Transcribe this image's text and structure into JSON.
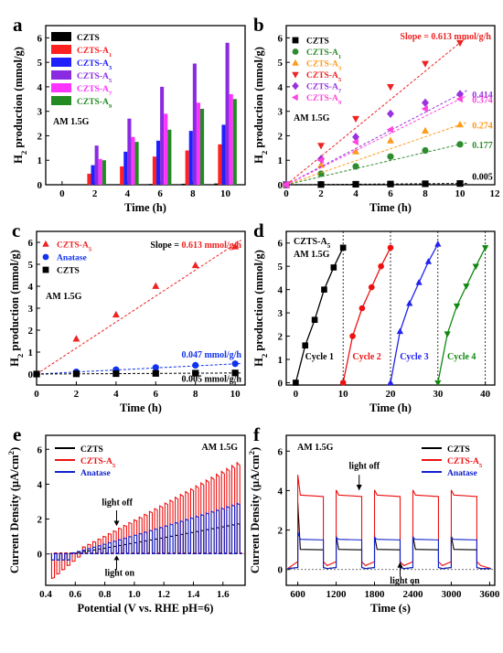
{
  "chart_data": [
    {
      "panel": "a",
      "type": "bar",
      "xlabel": "Time (h)",
      "ylabel": "H2 production (mmol/g)",
      "ylim": [
        0,
        6.5
      ],
      "annotation": "AM 1.5G",
      "categories": [
        0,
        2,
        4,
        6,
        8,
        10
      ],
      "series": [
        {
          "name": "CZTS",
          "color": "#000000",
          "values": [
            0,
            0.01,
            0.02,
            0.03,
            0.04,
            0.05
          ]
        },
        {
          "name": "CZTS-A1",
          "color": "#ff2020",
          "values": [
            0,
            0.45,
            0.75,
            1.15,
            1.4,
            1.65
          ]
        },
        {
          "name": "CZTS-A3",
          "color": "#2020ff",
          "values": [
            0,
            0.8,
            1.35,
            1.8,
            2.2,
            2.45
          ]
        },
        {
          "name": "CZTS-A5",
          "color": "#8a2be2",
          "values": [
            0,
            1.6,
            2.7,
            4.0,
            4.95,
            5.8
          ]
        },
        {
          "name": "CZTS-A7",
          "color": "#ff33ff",
          "values": [
            0,
            1.05,
            1.95,
            2.9,
            3.35,
            3.7
          ]
        },
        {
          "name": "CZTS-A9",
          "color": "#228b22",
          "values": [
            0,
            1.0,
            1.75,
            2.25,
            3.1,
            3.5
          ]
        }
      ]
    },
    {
      "panel": "b",
      "type": "scatter",
      "xlabel": "Time (h)",
      "ylabel": "H2 production (mmol/g)",
      "xlim": [
        0,
        12
      ],
      "ylim": [
        0,
        6.5
      ],
      "xticks": [
        0,
        2,
        4,
        6,
        8,
        10,
        12
      ],
      "yticks": [
        0,
        1,
        2,
        3,
        4,
        5,
        6
      ],
      "annotation": "AM 1.5G",
      "slope_label": "Slope = 0.613 mmol/g/h",
      "series": [
        {
          "name": "CZTS",
          "color": "#000000",
          "marker": "square",
          "slope": "0.005",
          "x": [
            0,
            2,
            4,
            6,
            8,
            10
          ],
          "y": [
            0,
            0.01,
            0.02,
            0.03,
            0.04,
            0.05
          ]
        },
        {
          "name": "CZTS-A1",
          "color": "#2e8b2e",
          "marker": "circle",
          "slope": "0.177",
          "x": [
            0,
            2,
            4,
            6,
            8,
            10
          ],
          "y": [
            0,
            0.45,
            0.75,
            1.15,
            1.4,
            1.65
          ]
        },
        {
          "name": "CZTS-A3",
          "color": "#ff9a1a",
          "marker": "triangle-up",
          "slope": "0.274",
          "x": [
            0,
            2,
            4,
            6,
            8,
            10
          ],
          "y": [
            0,
            0.8,
            1.35,
            1.8,
            2.2,
            2.45
          ]
        },
        {
          "name": "CZTS-A5",
          "color": "#ee2222",
          "marker": "triangle-down",
          "slope": "",
          "x": [
            0,
            2,
            4,
            6,
            8,
            10
          ],
          "y": [
            0,
            1.6,
            2.7,
            4.0,
            4.95,
            5.8
          ]
        },
        {
          "name": "CZTS-A7",
          "color": "#9933dd",
          "marker": "diamond",
          "slope": "0.414",
          "x": [
            0,
            2,
            4,
            6,
            8,
            10
          ],
          "y": [
            0,
            1.05,
            1.95,
            2.9,
            3.35,
            3.7
          ]
        },
        {
          "name": "CZTS-A9",
          "color": "#ff44dd",
          "marker": "triangle-left",
          "slope": "0.374",
          "x": [
            0,
            2,
            4,
            6,
            8,
            10
          ],
          "y": [
            0,
            1.0,
            1.75,
            2.25,
            3.1,
            3.5
          ]
        }
      ]
    },
    {
      "panel": "c",
      "type": "scatter",
      "xlabel": "Time (h)",
      "ylabel": "H2 production (mmol/g)",
      "xlim": [
        0,
        10.5
      ],
      "ylim": [
        -0.5,
        6.5
      ],
      "xticks": [
        0,
        2,
        4,
        6,
        8,
        10
      ],
      "yticks": [
        0,
        1,
        2,
        3,
        4,
        5,
        6
      ],
      "annotation": "AM 1.5G",
      "labels": {
        "slope_prefix": "Slope = ",
        "slope_value": "0.613 mmol/g/h",
        "anatase_slope": "0.047 mmol/g/h",
        "czts_slope": "0.005 mmol/g/h"
      },
      "series": [
        {
          "name": "CZTS-A5",
          "color": "#ee2222",
          "marker": "triangle-up",
          "x": [
            2,
            4,
            6,
            8,
            10
          ],
          "y": [
            1.6,
            2.7,
            4.0,
            4.95,
            5.8
          ]
        },
        {
          "name": "Anatase",
          "color": "#1133ee",
          "marker": "circle",
          "x": [
            0,
            2,
            4,
            6,
            8,
            10
          ],
          "y": [
            0,
            0.1,
            0.2,
            0.3,
            0.4,
            0.47
          ]
        },
        {
          "name": "CZTS",
          "color": "#000000",
          "marker": "square",
          "x": [
            0,
            2,
            4,
            6,
            8,
            10
          ],
          "y": [
            0,
            0.01,
            0.02,
            0.03,
            0.04,
            0.05
          ]
        }
      ]
    },
    {
      "panel": "d",
      "type": "line",
      "xlabel": "Time (h)",
      "ylabel": "H2 production (mmol/g)",
      "xlim": [
        -2,
        42
      ],
      "ylim": [
        -0.1,
        6.5
      ],
      "xticks": [
        0,
        10,
        20,
        30,
        40
      ],
      "yticks": [
        0,
        1,
        2,
        3,
        4,
        5,
        6
      ],
      "label": "CZTS-A5",
      "annotation": "AM 1.5G",
      "series": [
        {
          "name": "Cycle 1",
          "color": "#000000",
          "marker": "square",
          "x": [
            0,
            2,
            4,
            6,
            8,
            10
          ],
          "y": [
            0,
            1.6,
            2.7,
            4.0,
            4.95,
            5.8
          ]
        },
        {
          "name": "Cycle 2",
          "color": "#ee1111",
          "marker": "circle",
          "x": [
            10,
            12,
            14,
            16,
            18,
            20
          ],
          "y": [
            0,
            2.0,
            3.2,
            4.1,
            5.0,
            5.8
          ]
        },
        {
          "name": "Cycle 3",
          "color": "#2222ee",
          "marker": "triangle-up",
          "x": [
            20,
            22,
            24,
            26,
            28,
            30
          ],
          "y": [
            0,
            2.2,
            3.4,
            4.3,
            5.2,
            5.95
          ]
        },
        {
          "name": "Cycle 4",
          "color": "#118811",
          "marker": "triangle-down",
          "x": [
            30,
            32,
            34,
            36,
            38,
            40
          ],
          "y": [
            0,
            2.1,
            3.3,
            4.15,
            5.0,
            5.8
          ]
        }
      ],
      "dividers": [
        10,
        20,
        30,
        40
      ]
    },
    {
      "panel": "e",
      "type": "line",
      "xlabel": "Potential (V vs. RHE pH=6)",
      "ylabel": "Current Density (μA/cm2)",
      "xlim": [
        0.4,
        1.75
      ],
      "ylim": [
        -1.8,
        6.8
      ],
      "xticks": [
        0.4,
        0.6,
        0.8,
        1.0,
        1.2,
        1.4,
        1.6
      ],
      "yticks": [
        0,
        2,
        4,
        6
      ],
      "annotation": "AM 1.5G",
      "light_off": "light off",
      "light_on": "light on",
      "series": [
        {
          "name": "CZTS",
          "color": "#000000",
          "on_start": 0.0,
          "on_end": 1.8
        },
        {
          "name": "CZTS-A5",
          "color": "#ee1111",
          "on_start": 0.0,
          "on_end": 5.4
        },
        {
          "name": "Anatase",
          "color": "#1122cc",
          "on_start": 0.0,
          "on_end": 3.0
        }
      ]
    },
    {
      "panel": "f",
      "type": "line",
      "xlabel": "Time (s)",
      "ylabel": "Current Density (μA/cm2)",
      "xlim": [
        420,
        3680
      ],
      "ylim": [
        -0.8,
        6.8
      ],
      "xticks": [
        600,
        1200,
        1800,
        2400,
        3000,
        3600
      ],
      "yticks": [
        0,
        2,
        4,
        6
      ],
      "annotation": "AM 1.5G",
      "light_off": "light off",
      "light_on": "light on",
      "on_intervals": [
        [
          600,
          1000
        ],
        [
          1200,
          1600
        ],
        [
          1800,
          2200
        ],
        [
          2400,
          2800
        ],
        [
          3000,
          3400
        ]
      ],
      "series": [
        {
          "name": "CZTS",
          "color": "#000000",
          "on_level": 1.0,
          "spike": 3.4
        },
        {
          "name": "CZTS-A5",
          "color": "#ee1111",
          "on_level": 3.7,
          "spike": 4.8
        },
        {
          "name": "Anatase",
          "color": "#1122cc",
          "on_level": 1.5,
          "spike": 1.9
        }
      ]
    }
  ],
  "panel_labels": [
    "a",
    "b",
    "c",
    "d",
    "e",
    "f"
  ]
}
